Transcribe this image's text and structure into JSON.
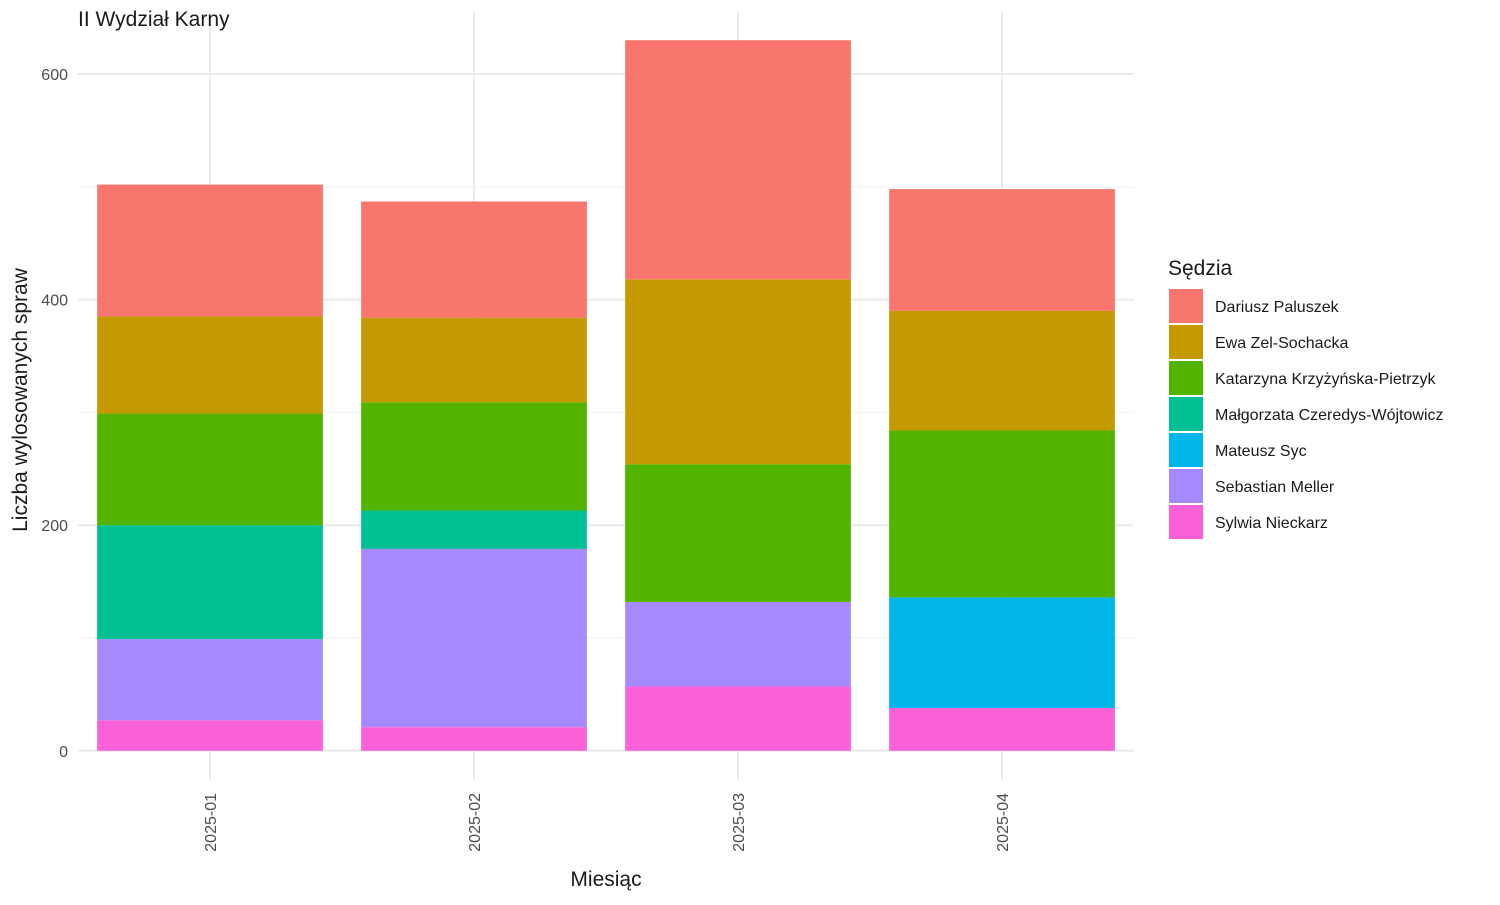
{
  "chart_data": {
    "type": "bar",
    "stacked": true,
    "title": "II Wydział Karny",
    "xlabel": "Miesiąc",
    "ylabel": "Liczba wylosowanych spraw",
    "categories": [
      "2025-01",
      "2025-02",
      "2025-03",
      "2025-04"
    ],
    "ylim": [
      -25,
      655
    ],
    "y_ticks": [
      0,
      200,
      400,
      600
    ],
    "y_tick_labels": [
      "0",
      "200",
      "400",
      "600"
    ],
    "grid": true,
    "legend_title": "Sędzia",
    "legend_position": "right",
    "series": [
      {
        "name": "Dariusz Paluszek",
        "color": "#F8766D",
        "values": [
          117,
          103,
          212,
          108
        ]
      },
      {
        "name": "Ewa Zel-Sochacka",
        "color": "#C49A00",
        "values": [
          86,
          75,
          164,
          106
        ]
      },
      {
        "name": "Katarzyna Krzyżyńska-Pietrzyk",
        "color": "#53B400",
        "values": [
          99,
          96,
          122,
          148
        ]
      },
      {
        "name": "Małgorzata Czeredys-Wójtowicz",
        "color": "#00C094",
        "values": [
          101,
          34,
          0,
          0
        ]
      },
      {
        "name": "Mateusz Syc",
        "color": "#00B6EB",
        "values": [
          0,
          0,
          0,
          98
        ]
      },
      {
        "name": "Sebastian Meller",
        "color": "#A58AFF",
        "values": [
          72,
          158,
          75,
          0
        ]
      },
      {
        "name": "Sylwia Nieckarz",
        "color": "#FB61D7",
        "values": [
          27,
          21,
          57,
          38
        ]
      }
    ]
  }
}
